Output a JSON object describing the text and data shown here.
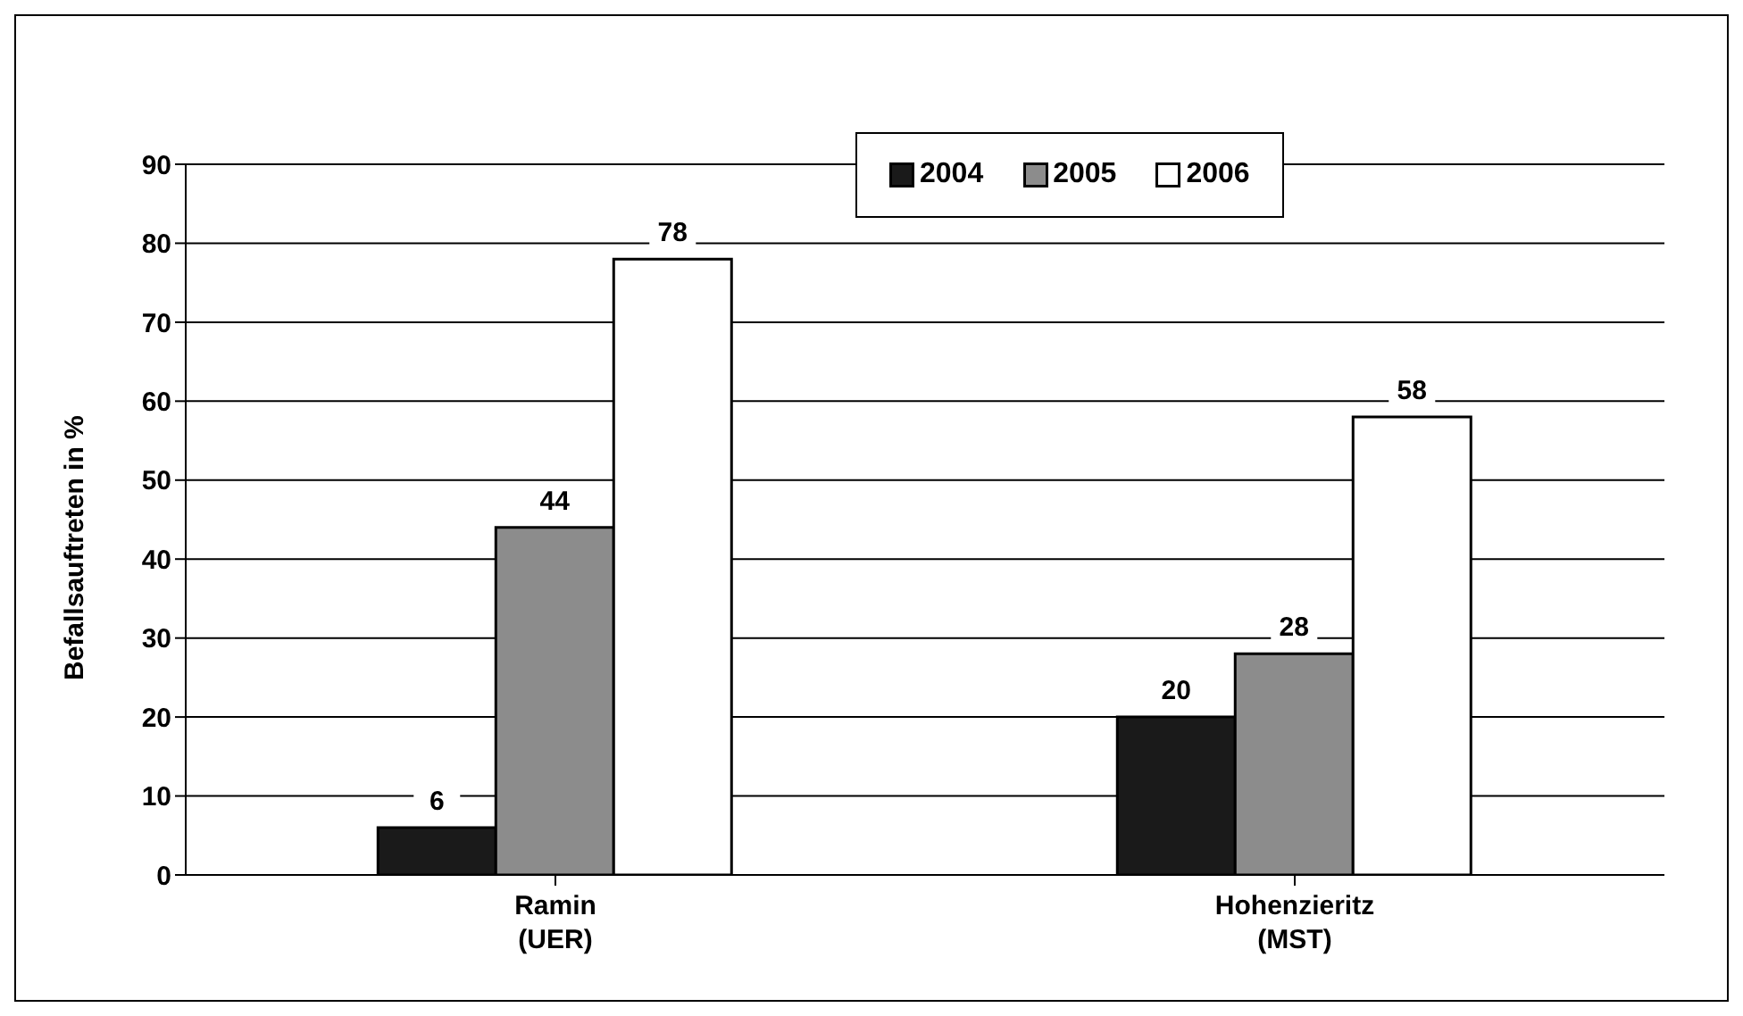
{
  "chart_data": {
    "type": "bar",
    "ylabel": "Befallsauftreten in %",
    "categories": [
      "Ramin\n(UER)",
      "Hohenzieritz\n(MST)"
    ],
    "series": [
      {
        "name": "2004",
        "color": "#1a1a1a",
        "values": [
          6,
          20
        ]
      },
      {
        "name": "2005",
        "color": "#8c8c8c",
        "values": [
          44,
          28
        ]
      },
      {
        "name": "2006",
        "color": "#ffffff",
        "values": [
          78,
          58
        ]
      }
    ],
    "ylim": [
      0,
      90
    ],
    "yticks": [
      0,
      10,
      20,
      30,
      40,
      50,
      60,
      70,
      80,
      90
    ],
    "grid": "y",
    "legend": "top",
    "data_labels": true
  }
}
